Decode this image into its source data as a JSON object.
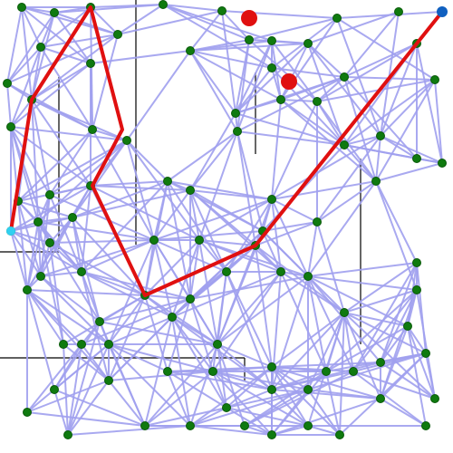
{
  "diagram": {
    "kind": "probabilistic-roadmap-path",
    "colors": {
      "background": "#ffffff",
      "wall": "#000000",
      "edge": "#a0a0ee",
      "node_fill": "#0f7a0f",
      "path": "#e01010",
      "obstacle": "#e01010",
      "goal": "#1060c0",
      "start": "#30d0f0"
    }
  }
}
